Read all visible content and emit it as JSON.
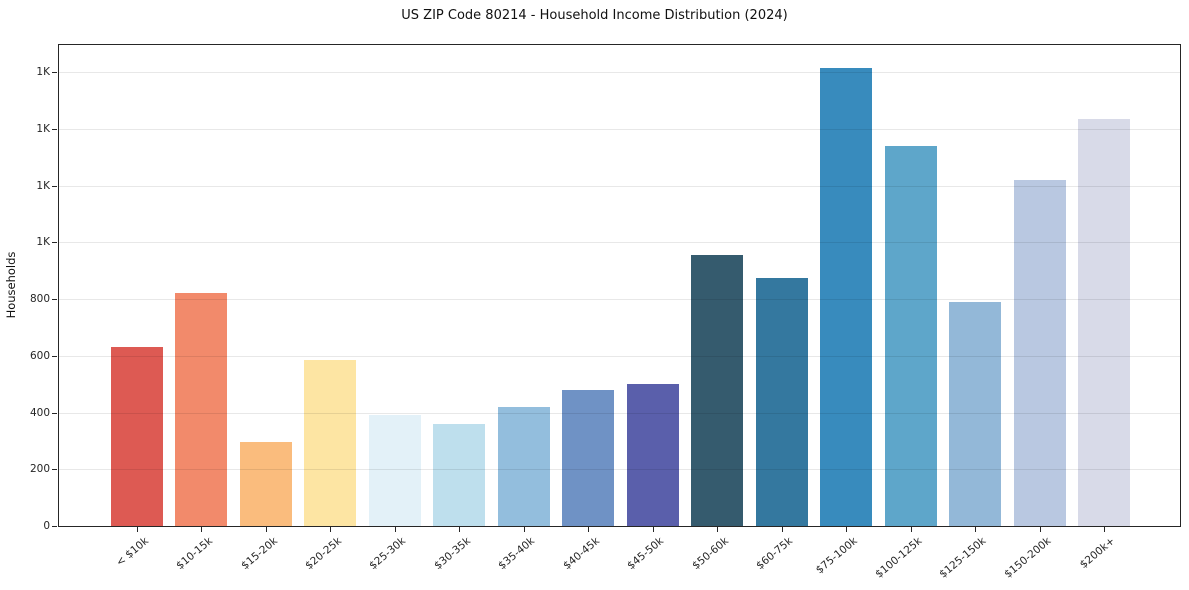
{
  "chart_data": {
    "type": "bar",
    "title": "US ZIP Code 80214 - Household Income Distribution (2024)",
    "xlabel": "",
    "ylabel": "Households",
    "categories": [
      "< $10k",
      "$10-15k",
      "$15-20k",
      "$20-25k",
      "$25-30k",
      "$30-35k",
      "$35-40k",
      "$40-45k",
      "$45-50k",
      "$50-60k",
      "$60-75k",
      "$75-100k",
      "$100-125k",
      "$125-150k",
      "$150-200k",
      "$200k+"
    ],
    "values": [
      630,
      820,
      295,
      585,
      390,
      360,
      420,
      480,
      500,
      955,
      875,
      1615,
      1340,
      790,
      1220,
      1435
    ],
    "bar_colors": [
      "#dd5a53",
      "#f28a6b",
      "#fabc7d",
      "#fde5a3",
      "#e3f1f8",
      "#bedfed",
      "#93bedd",
      "#6f92c5",
      "#5a5fab",
      "#355b6e",
      "#34789f",
      "#388bbd",
      "#5ea6ca",
      "#93b8d8",
      "#b9c8e1",
      "#d8dae8"
    ],
    "ylim": [
      0,
      1696
    ],
    "yticks": [
      {
        "value": 0,
        "label": "0"
      },
      {
        "value": 200,
        "label": "200"
      },
      {
        "value": 400,
        "label": "400"
      },
      {
        "value": 600,
        "label": "600"
      },
      {
        "value": 800,
        "label": "800"
      },
      {
        "value": 1000,
        "label": "1K"
      },
      {
        "value": 1200,
        "label": "1K"
      },
      {
        "value": 1400,
        "label": "1K"
      },
      {
        "value": 1600,
        "label": "1K"
      }
    ],
    "grid": "horizontal",
    "legend": "none"
  },
  "colors": {
    "background": "#ffffff",
    "spine": "#262626",
    "grid": "#e9e9e9",
    "tick_text": "#262626",
    "title_text": "#111111"
  }
}
